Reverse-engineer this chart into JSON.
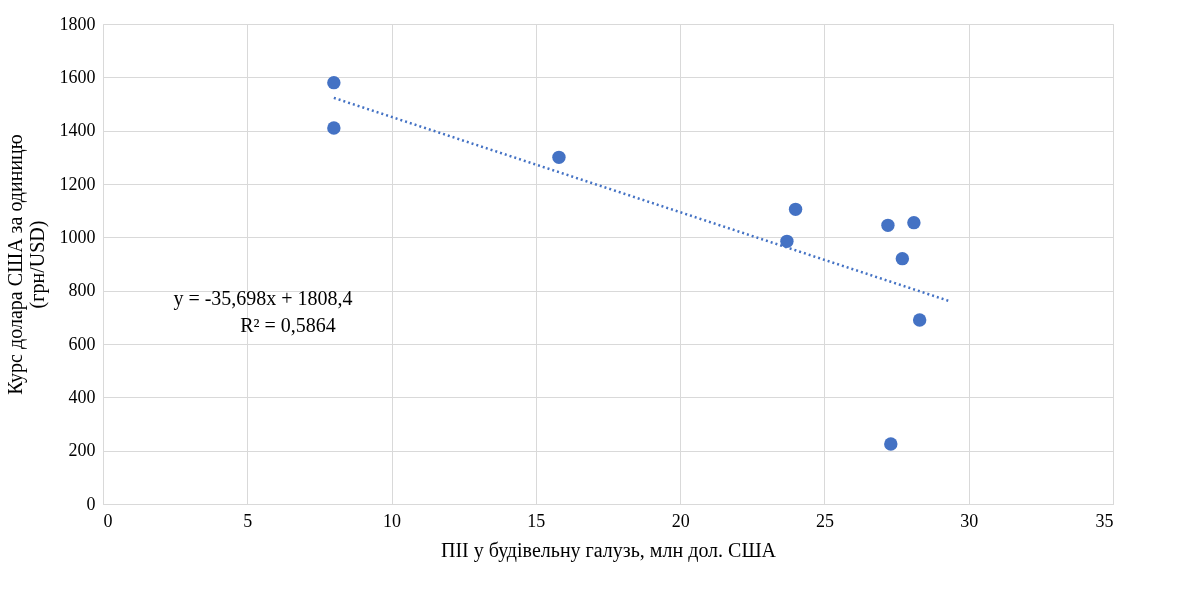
{
  "chart_data": {
    "type": "scatter",
    "xlabel": "ПІІ у будівельну галузь, млн дол. США",
    "ylabel": "Курс долара США за одиницю\n(грн/USD)",
    "series": [
      {
        "color": "#4472c4",
        "marker": "circle",
        "x": [
          8,
          8,
          15.8,
          24,
          23.7,
          27.2,
          28.1,
          27.7,
          28.3,
          27.3
        ],
        "values": [
          1580,
          1410,
          1300,
          1105,
          985,
          1045,
          1055,
          920,
          690,
          225
        ]
      },
      {
        "type": "line",
        "color": "#4472c4",
        "line_style": "dotted",
        "marker": "none",
        "x": [
          8,
          29.3
        ],
        "values": [
          1523,
          762
        ]
      }
    ],
    "annotations": [
      "y = -35,698x + 1808,4",
      "R² = 0,5864"
    ],
    "xlim": [
      0,
      35
    ],
    "xticks": [
      0,
      5,
      10,
      15,
      20,
      25,
      30,
      35
    ],
    "ylim": [
      0,
      1800
    ],
    "yticks": [
      0,
      200,
      400,
      600,
      800,
      1000,
      1200,
      1400,
      1600,
      1800
    ],
    "grid": true
  }
}
